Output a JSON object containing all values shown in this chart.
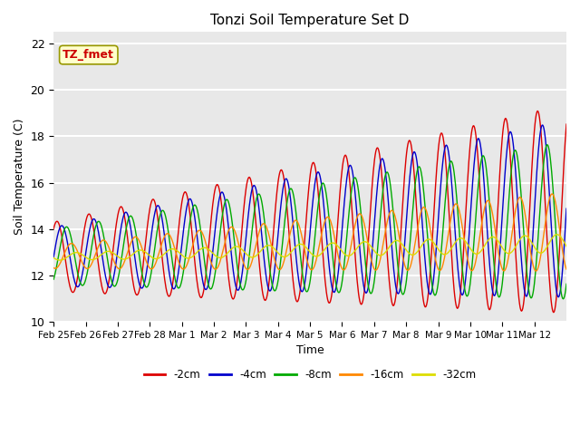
{
  "title": "Tonzi Soil Temperature Set D",
  "xlabel": "Time",
  "ylabel": "Soil Temperature (C)",
  "annotation": "TZ_fmet",
  "annotation_color": "#cc0000",
  "annotation_bg": "#ffffcc",
  "ylim": [
    10,
    22.5
  ],
  "bg_color": "#e8e8e8",
  "grid_color": "#ffffff",
  "series_colors": [
    "#dd0000",
    "#0000cc",
    "#00aa00",
    "#ff8800",
    "#dddd00"
  ],
  "series_labels": [
    "-2cm",
    "-4cm",
    "-8cm",
    "-16cm",
    "-32cm"
  ],
  "xtick_labels": [
    "Feb 25",
    "Feb 26",
    "Feb 27",
    "Feb 28",
    "Mar 1",
    "Mar 2",
    "Mar 3",
    "Mar 4",
    "Mar 5",
    "Mar 6",
    "Mar 7",
    "Mar 8",
    "Mar 9",
    "Mar 10",
    "Mar 11",
    "Mar 12"
  ],
  "num_points": 800,
  "base_temp": 12.8,
  "warming_rate": 0.13
}
